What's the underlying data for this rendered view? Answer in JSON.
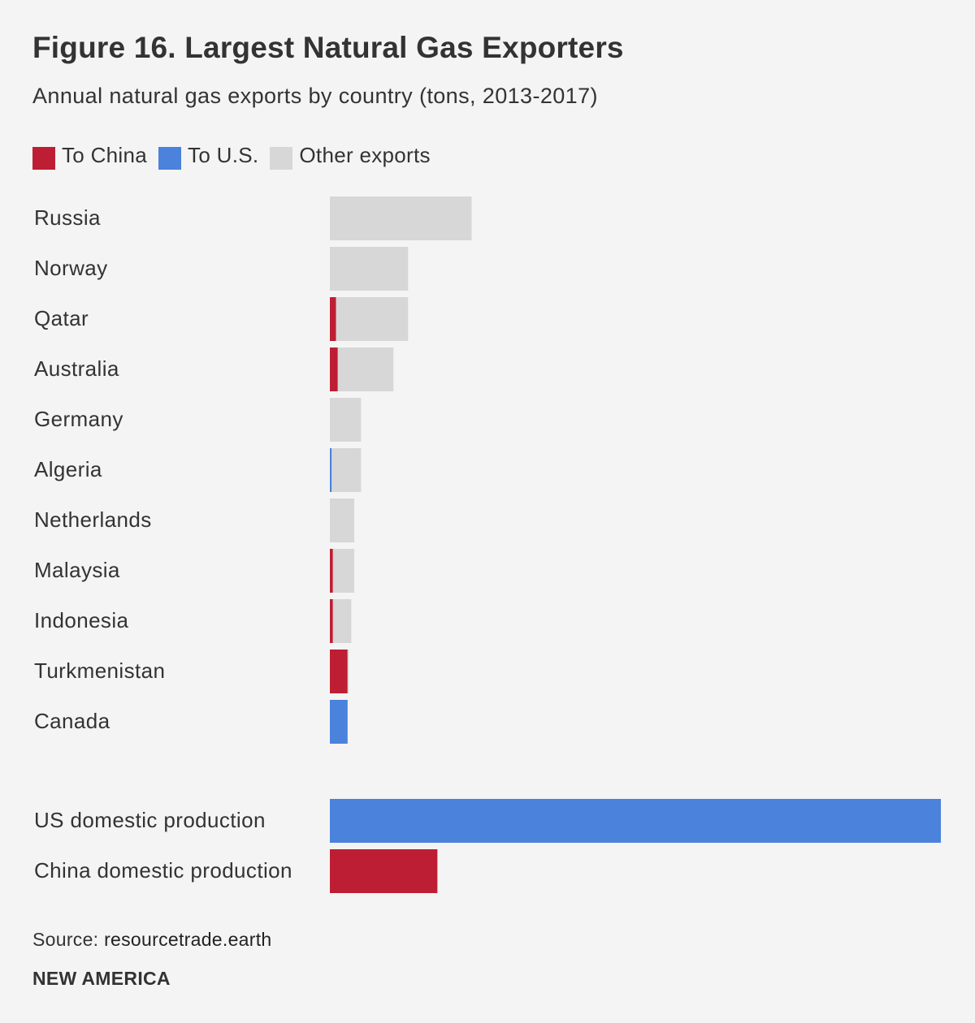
{
  "chart_data": {
    "type": "bar",
    "orientation": "horizontal",
    "stacked": true,
    "title": "Figure 16. Largest Natural Gas Exporters",
    "subtitle": "Annual natural gas exports by country (tons, 2013-2017)",
    "legend": [
      {
        "name": "To China",
        "color": "#be1e33"
      },
      {
        "name": "To U.S.",
        "color": "#4a82dc"
      },
      {
        "name": "Other exports",
        "color": "#d7d7d7"
      }
    ],
    "categories": [
      "Russia",
      "Norway",
      "Qatar",
      "Australia",
      "Germany",
      "Algeria",
      "Netherlands",
      "Malaysia",
      "Indonesia",
      "Turkmenistan",
      "Canada"
    ],
    "series": [
      {
        "name": "To China",
        "values": [
          0,
          0,
          1.0,
          1.3,
          0,
          0,
          0,
          0.5,
          0.5,
          2.9,
          0
        ]
      },
      {
        "name": "To U.S.",
        "values": [
          0,
          0,
          0,
          0,
          0,
          0.3,
          0,
          0,
          0,
          0,
          2.9
        ]
      },
      {
        "name": "Other exports",
        "values": [
          23.2,
          12.8,
          11.8,
          9.1,
          5.1,
          4.8,
          4.0,
          3.5,
          3.0,
          0.2,
          0
        ]
      }
    ],
    "domestic": {
      "categories": [
        "US domestic production",
        "China domestic production"
      ],
      "values": [
        100,
        17.6
      ],
      "colors": [
        "#4a82dc",
        "#be1e33"
      ]
    },
    "xlim": [
      0,
      100
    ],
    "xlabel": "",
    "ylabel": "",
    "grid": false,
    "axes_visible": false,
    "legend_position": "top-left"
  },
  "footer": {
    "source_label": "Source:",
    "source_text": "resourcetrade.earth",
    "brand": "NEW AMERICA"
  }
}
